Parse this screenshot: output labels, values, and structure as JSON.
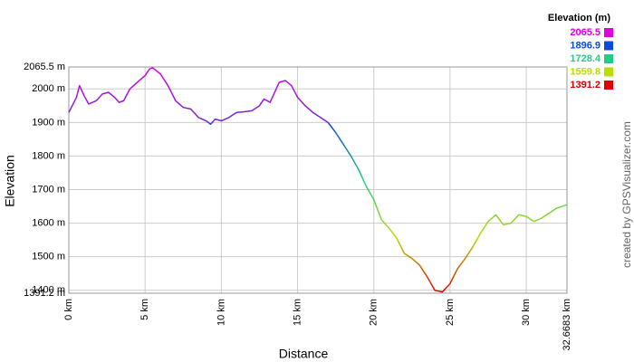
{
  "chart_data": {
    "type": "line",
    "xlabel": "Distance",
    "ylabel": "Elevation",
    "credit": "created by GPSVisualizer.com",
    "x": [
      0,
      0.5,
      0.7,
      1.0,
      1.3,
      1.8,
      2.2,
      2.6,
      3.0,
      3.3,
      3.6,
      4.0,
      4.5,
      5.0,
      5.3,
      5.5,
      6.0,
      6.5,
      7.0,
      7.5,
      8.0,
      8.5,
      9.0,
      9.3,
      9.6,
      10.0,
      10.5,
      11.0,
      11.5,
      12.0,
      12.5,
      12.8,
      13.2,
      13.5,
      13.8,
      14.2,
      14.6,
      15.0,
      15.5,
      16.0,
      16.5,
      17.0,
      17.5,
      18.0,
      18.5,
      19.0,
      19.5,
      20.0,
      20.5,
      21.0,
      21.5,
      22.0,
      22.5,
      23.0,
      23.5,
      24.0,
      24.5,
      25.0,
      25.5,
      26.0,
      26.5,
      27.0,
      27.5,
      28.0,
      28.5,
      29.0,
      29.5,
      30.0,
      30.5,
      31.0,
      31.5,
      32.0,
      32.6683
    ],
    "values": [
      1930,
      1975,
      2010,
      1980,
      1955,
      1965,
      1985,
      1990,
      1975,
      1960,
      1965,
      2000,
      2020,
      2040,
      2060,
      2063,
      2045,
      2010,
      1965,
      1945,
      1940,
      1915,
      1905,
      1895,
      1910,
      1905,
      1915,
      1930,
      1932,
      1935,
      1950,
      1970,
      1960,
      1990,
      2020,
      2025,
      2010,
      1975,
      1950,
      1930,
      1915,
      1900,
      1870,
      1835,
      1800,
      1760,
      1710,
      1670,
      1610,
      1585,
      1555,
      1510,
      1495,
      1475,
      1440,
      1400,
      1395,
      1420,
      1465,
      1495,
      1530,
      1570,
      1605,
      1625,
      1595,
      1600,
      1625,
      1620,
      1605,
      1615,
      1630,
      1645,
      1655
    ],
    "xlim": [
      0,
      32.6683
    ],
    "xticks": [
      {
        "value": 0,
        "label": "0 km"
      },
      {
        "value": 5,
        "label": "5 km"
      },
      {
        "value": 10,
        "label": "10 km"
      },
      {
        "value": 15,
        "label": "15 km"
      },
      {
        "value": 20,
        "label": "20 km"
      },
      {
        "value": 25,
        "label": "25 km"
      },
      {
        "value": 30,
        "label": "30 km"
      },
      {
        "value": 32.6683,
        "label": "32.6683 km"
      }
    ],
    "ylim": [
      1391.2,
      2065.5
    ],
    "yticks": [
      {
        "value": 1391.2,
        "label": "1391.2 m"
      },
      {
        "value": 1400,
        "label": "1400 m"
      },
      {
        "value": 1500,
        "label": "1500 m"
      },
      {
        "value": 1600,
        "label": "1600 m"
      },
      {
        "value": 1700,
        "label": "1700 m"
      },
      {
        "value": 1800,
        "label": "1800 m"
      },
      {
        "value": 1900,
        "label": "1900 m"
      },
      {
        "value": 2000,
        "label": "2000 m"
      },
      {
        "value": 2065.5,
        "label": "2065.5 m"
      }
    ],
    "grid": true,
    "legend": {
      "title": "Elevation (m)",
      "items": [
        {
          "value": 2065.5,
          "color": "#e000e0"
        },
        {
          "value": 1896.9,
          "color": "#0a4ad8"
        },
        {
          "value": 1728.4,
          "color": "#22cc88"
        },
        {
          "value": 1559.8,
          "color": "#bbdd00"
        },
        {
          "value": 1391.2,
          "color": "#dd0000"
        }
      ]
    }
  }
}
